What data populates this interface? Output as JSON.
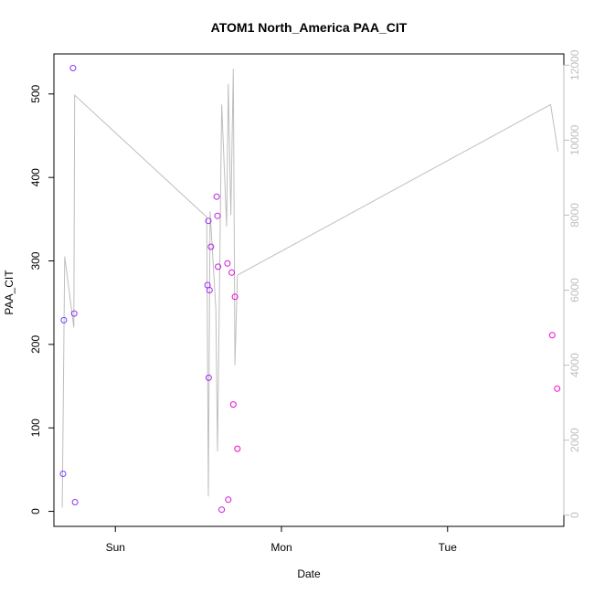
{
  "chart_data": {
    "type": "scatter",
    "title": "ATOM1 North_America PAA_CIT",
    "xlabel": "Date",
    "ylabel": "PAA_CIT",
    "xlim": [
      -0.37,
      2.7
    ],
    "ylim": [
      -18,
      548
    ],
    "y2lim": [
      -300,
      12300
    ],
    "x_ticks": [
      {
        "value": 0.0,
        "label": "Sun"
      },
      {
        "value": 1.0,
        "label": "Mon"
      },
      {
        "value": 2.0,
        "label": "Tue"
      }
    ],
    "y_ticks": [
      0,
      100,
      200,
      300,
      400,
      500
    ],
    "y2_ticks": [
      0,
      2000,
      4000,
      6000,
      8000,
      10000,
      12000
    ],
    "grid": false,
    "colors": {
      "line": "#bebebe",
      "axis": "#000000",
      "right_axis": "#bebebe",
      "points_start": "#7a3cff",
      "points_end": "#ff00c8"
    },
    "points": [
      {
        "x": -0.315,
        "y": 45
      },
      {
        "x": -0.31,
        "y": 229
      },
      {
        "x": -0.255,
        "y": 531
      },
      {
        "x": -0.248,
        "y": 237
      },
      {
        "x": -0.243,
        "y": 11
      },
      {
        "x": 0.555,
        "y": 271
      },
      {
        "x": 0.56,
        "y": 348
      },
      {
        "x": 0.562,
        "y": 160
      },
      {
        "x": 0.567,
        "y": 265
      },
      {
        "x": 0.575,
        "y": 317
      },
      {
        "x": 0.61,
        "y": 377
      },
      {
        "x": 0.615,
        "y": 354
      },
      {
        "x": 0.618,
        "y": 293
      },
      {
        "x": 0.64,
        "y": 2
      },
      {
        "x": 0.675,
        "y": 297
      },
      {
        "x": 0.68,
        "y": 14
      },
      {
        "x": 0.7,
        "y": 286
      },
      {
        "x": 0.71,
        "y": 128
      },
      {
        "x": 0.72,
        "y": 257
      },
      {
        "x": 0.735,
        "y": 75
      },
      {
        "x": 2.63,
        "y": 211
      },
      {
        "x": 2.66,
        "y": 147
      }
    ],
    "line_series": [
      {
        "x": -0.32,
        "y": 200
      },
      {
        "x": -0.305,
        "y": 6900
      },
      {
        "x": -0.25,
        "y": 5000
      },
      {
        "x": -0.245,
        "y": 11200
      },
      {
        "x": 0.55,
        "y": 7950
      },
      {
        "x": 0.56,
        "y": 500
      },
      {
        "x": 0.57,
        "y": 8100
      },
      {
        "x": 0.605,
        "y": 5500
      },
      {
        "x": 0.615,
        "y": 1700
      },
      {
        "x": 0.64,
        "y": 10950
      },
      {
        "x": 0.67,
        "y": 7700
      },
      {
        "x": 0.68,
        "y": 11500
      },
      {
        "x": 0.695,
        "y": 8000
      },
      {
        "x": 0.71,
        "y": 11900
      },
      {
        "x": 0.72,
        "y": 4000
      },
      {
        "x": 0.735,
        "y": 6400
      },
      {
        "x": 2.62,
        "y": 10950
      },
      {
        "x": 2.665,
        "y": 9700
      }
    ]
  }
}
